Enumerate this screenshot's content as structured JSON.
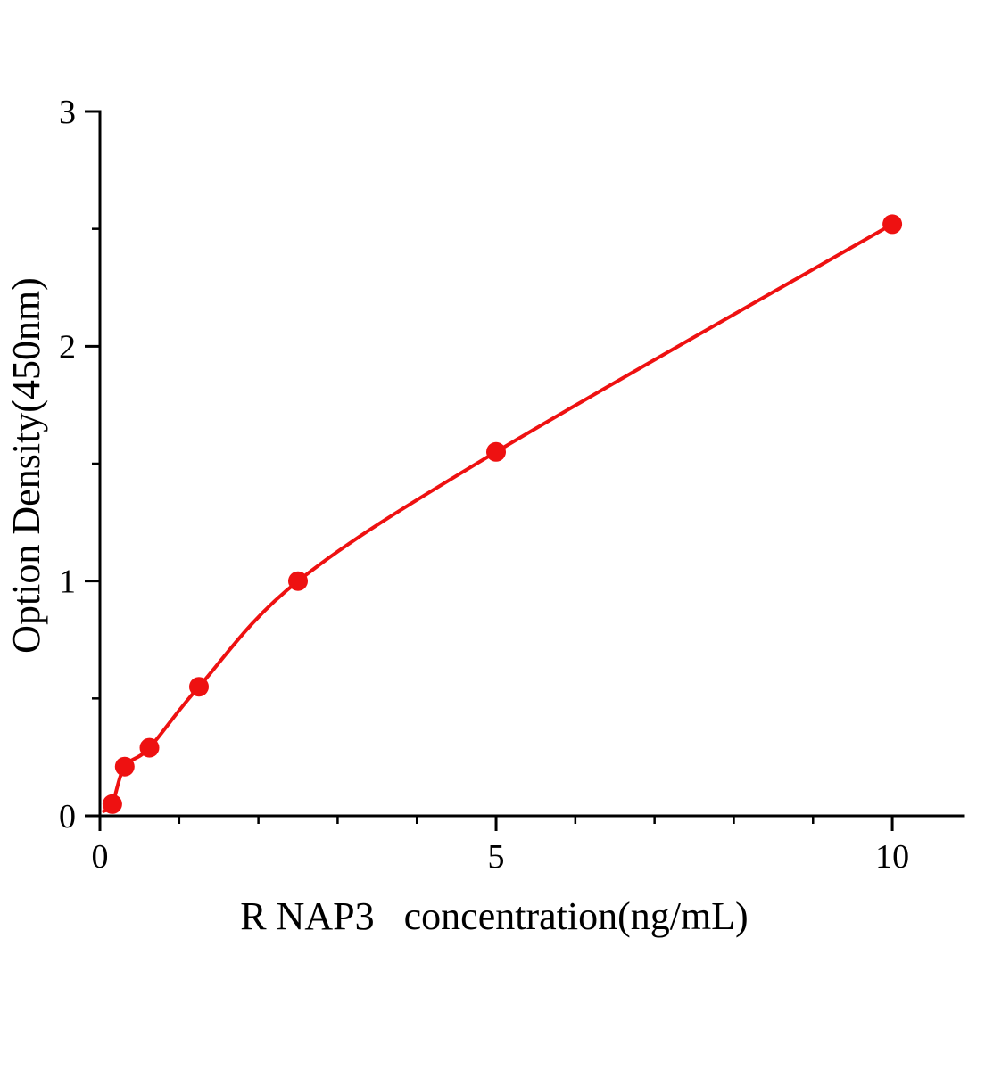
{
  "figure": {
    "kind": "ELISA standard curve plot",
    "background_color": "#ffffff"
  },
  "chart_data": {
    "type": "scatter",
    "title": "",
    "xlabel": "R NAP3   concentration(ng/mL)",
    "ylabel": "Option Density(450nm)",
    "x": [
      0.156,
      0.313,
      0.625,
      1.25,
      2.5,
      5,
      10
    ],
    "y": [
      0.05,
      0.21,
      0.29,
      0.55,
      1.0,
      1.55,
      2.52
    ],
    "xlim": [
      0,
      10.9
    ],
    "ylim": [
      0,
      3
    ],
    "x_major_ticks": [
      0,
      5,
      10
    ],
    "y_major_ticks": [
      0,
      1,
      2,
      3
    ],
    "x_minor_step": 1,
    "y_minor_step": 0.5,
    "grid": false,
    "legend": "none",
    "curve": "smooth fitted curve through data points",
    "marker_radius": 11,
    "point_color": "#ee1111",
    "line_color": "#ee1111",
    "axis_color": "#000000",
    "tick_direction": "out"
  }
}
